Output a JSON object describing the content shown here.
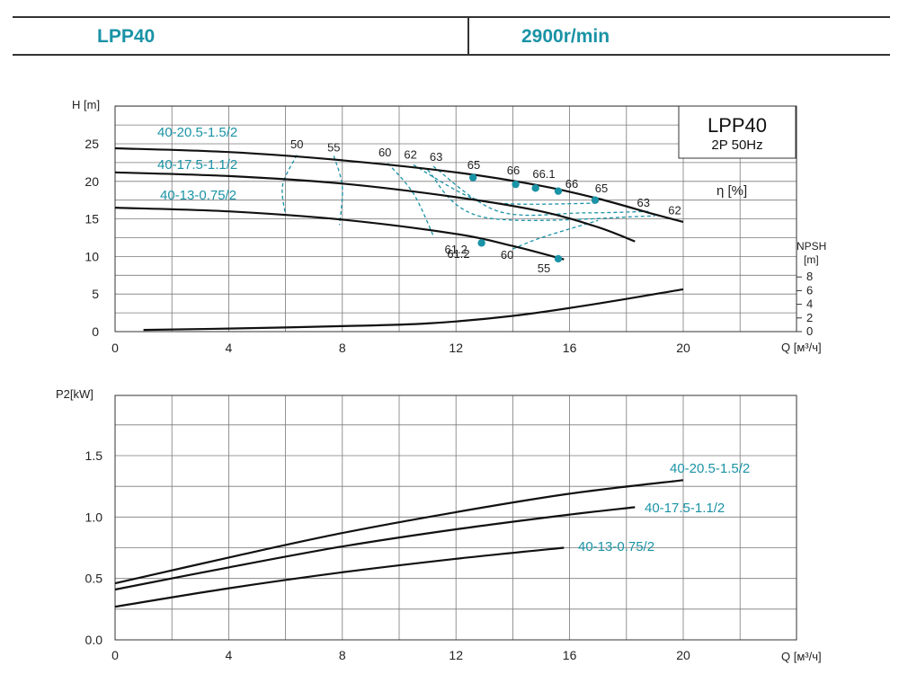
{
  "header": {
    "model": "LPP40",
    "speed": "2900r/min"
  },
  "colors": {
    "accent": "#1a93a6",
    "curve": "#111111",
    "grid": "#7a7a7a"
  },
  "chart_data": [
    {
      "type": "line",
      "title": "LPP40",
      "subtitle": "2P  50Hz",
      "ylabel": "H [m]",
      "xlabel": "Q [м³/ч]",
      "xlim": [
        0,
        20
      ],
      "ylim": [
        0,
        30
      ],
      "xticks": [
        0,
        4,
        8,
        12,
        16,
        20
      ],
      "yticks": [
        0,
        5,
        10,
        15,
        20,
        25
      ],
      "secondary_axis": {
        "label": "NPSH",
        "unit": "[m]",
        "ticks": [
          0,
          2,
          4,
          6,
          8
        ]
      },
      "efficiency_label": "η [%]",
      "series": [
        {
          "name": "40-20.5-1.5/2",
          "role": "head",
          "x": [
            0,
            4,
            8,
            12,
            15,
            17,
            19,
            20
          ],
          "y": [
            24.4,
            23.9,
            22.8,
            21.2,
            19.4,
            17.7,
            15.6,
            14.6
          ]
        },
        {
          "name": "40-17.5-1.1/2",
          "role": "head",
          "x": [
            0,
            4,
            8,
            12,
            15,
            17,
            18.3
          ],
          "y": [
            21.2,
            20.7,
            19.7,
            17.9,
            16.0,
            13.9,
            12.0
          ]
        },
        {
          "name": "40-13-0.75/2",
          "role": "head",
          "x": [
            0,
            4,
            8,
            12,
            14,
            15.8
          ],
          "y": [
            16.5,
            16.0,
            14.9,
            13.0,
            11.4,
            9.6
          ]
        },
        {
          "name": "NPSH",
          "role": "npsh",
          "x": [
            1,
            4,
            8,
            11,
            14,
            17,
            20
          ],
          "y": [
            0.25,
            0.45,
            0.8,
            1.2,
            2.3,
            4.1,
            6.2
          ]
        }
      ],
      "efficiency_points": [
        {
          "x": 12.6,
          "y": 20.5,
          "label": "65"
        },
        {
          "x": 14.1,
          "y": 19.6,
          "label": "66"
        },
        {
          "x": 14.8,
          "y": 19.1,
          "label": "66.1"
        },
        {
          "x": 15.6,
          "y": 18.7,
          "label": "66"
        },
        {
          "x": 16.9,
          "y": 17.5,
          "label": "65"
        },
        {
          "x": 12.9,
          "y": 11.8,
          "label": "61.2"
        },
        {
          "x": 15.6,
          "y": 9.7,
          "label": "55"
        }
      ],
      "efficiency_labels": [
        {
          "x": 6.4,
          "y": 24.4,
          "label": "50"
        },
        {
          "x": 7.7,
          "y": 24.0,
          "label": "55"
        },
        {
          "x": 9.5,
          "y": 23.3,
          "label": "60"
        },
        {
          "x": 10.4,
          "y": 23.0,
          "label": "62"
        },
        {
          "x": 11.3,
          "y": 22.7,
          "label": "63"
        },
        {
          "x": 18.6,
          "y": 16.6,
          "label": "63"
        },
        {
          "x": 19.7,
          "y": 15.6,
          "label": "62"
        },
        {
          "x": 12.0,
          "y": 10.4,
          "label": "61.2"
        },
        {
          "x": 13.8,
          "y": 9.7,
          "label": "60"
        }
      ]
    },
    {
      "type": "line",
      "ylabel": "P2[kW]",
      "xlabel": "Q [м³/ч]",
      "xlim": [
        0,
        20
      ],
      "ylim": [
        0,
        2.0
      ],
      "xticks": [
        0,
        4,
        8,
        12,
        16,
        20
      ],
      "yticks": [
        0.0,
        0.5,
        1.0,
        1.5
      ],
      "ytick_labels": [
        "0.0",
        "0.5",
        "1.0",
        "1.5"
      ],
      "series": [
        {
          "name": "40-20.5-1.5/2",
          "x": [
            0,
            4,
            8,
            12,
            16,
            20
          ],
          "y": [
            0.46,
            0.67,
            0.87,
            1.04,
            1.19,
            1.3
          ]
        },
        {
          "name": "40-17.5-1.1/2",
          "x": [
            0,
            4,
            8,
            12,
            16,
            18.3
          ],
          "y": [
            0.41,
            0.59,
            0.76,
            0.9,
            1.02,
            1.08
          ]
        },
        {
          "name": "40-13-0.75/2",
          "x": [
            0,
            4,
            8,
            12,
            15.8
          ],
          "y": [
            0.27,
            0.42,
            0.55,
            0.66,
            0.75
          ]
        }
      ]
    }
  ]
}
